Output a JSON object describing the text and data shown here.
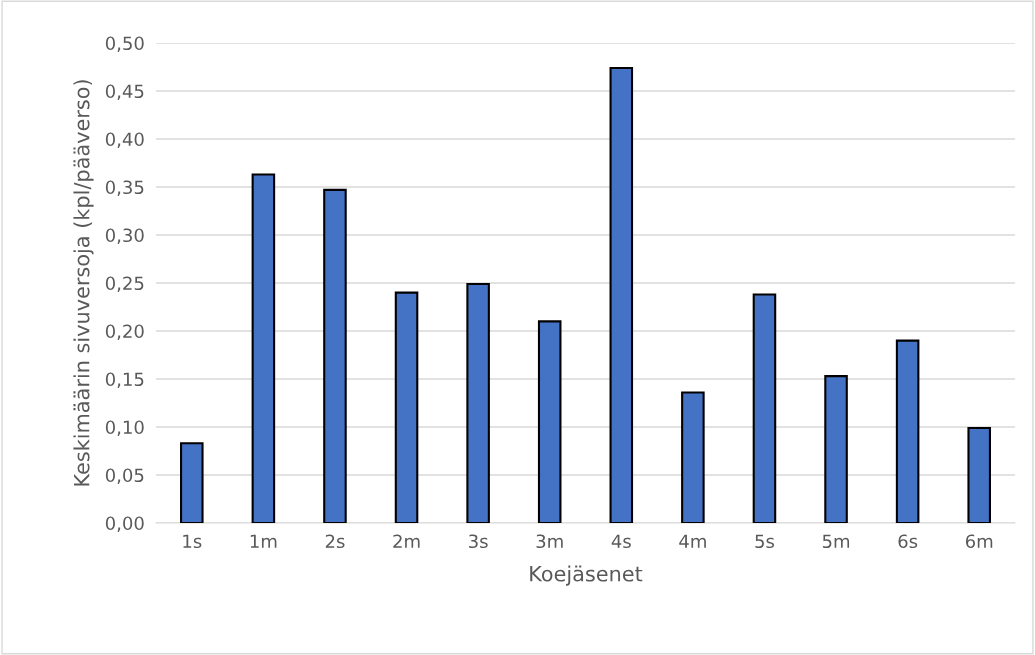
{
  "chart_data": {
    "type": "bar",
    "xlabel": "Koejäsenet",
    "ylabel": "Keskimäärin sivuversoja (kpl/pääverso)",
    "categories": [
      "1s",
      "1m",
      "2s",
      "2m",
      "3s",
      "3m",
      "4s",
      "4m",
      "5s",
      "5m",
      "6s",
      "6m"
    ],
    "values": [
      0.083,
      0.363,
      0.347,
      0.24,
      0.249,
      0.21,
      0.474,
      0.136,
      0.238,
      0.153,
      0.19,
      0.099
    ],
    "color": "#4472c4",
    "ylim": [
      0,
      0.5
    ],
    "yticks": [
      {
        "value": 0,
        "label": "0,00"
      },
      {
        "value": 0.05,
        "label": "0,05"
      },
      {
        "value": 0.1,
        "label": "0,10"
      },
      {
        "value": 0.15,
        "label": "0,15"
      },
      {
        "value": 0.2,
        "label": "0,20"
      },
      {
        "value": 0.25,
        "label": "0,25"
      },
      {
        "value": 0.3,
        "label": "0,30"
      },
      {
        "value": 0.35,
        "label": "0,35"
      },
      {
        "value": 0.4,
        "label": "0,40"
      },
      {
        "value": 0.45,
        "label": "0,45"
      },
      {
        "value": 0.5,
        "label": "0,50"
      }
    ],
    "grid": "y"
  }
}
